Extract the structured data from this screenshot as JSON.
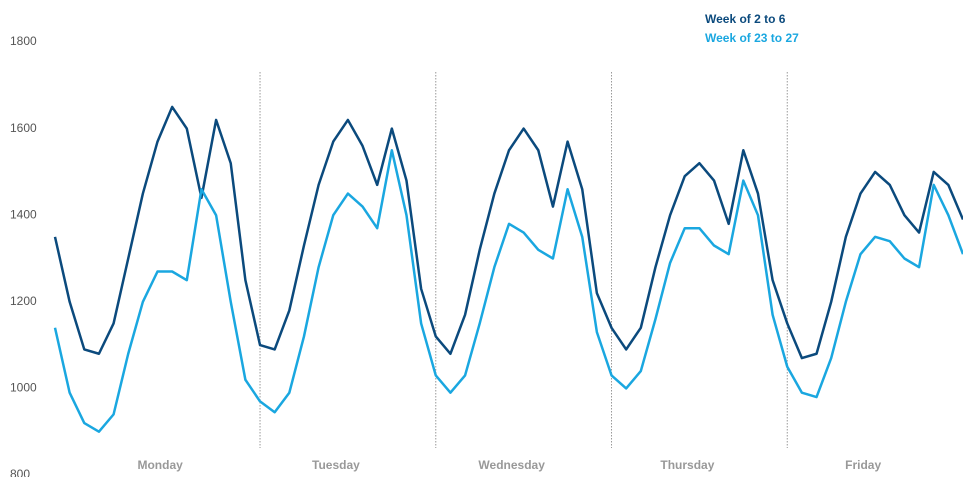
{
  "chart_data": {
    "type": "line",
    "x": [
      -4,
      -2,
      0,
      2,
      4,
      6,
      8,
      10,
      12,
      14,
      16,
      18,
      20,
      22,
      24,
      26,
      28,
      30,
      32,
      34,
      36,
      38,
      40,
      42,
      44,
      46,
      48,
      50,
      52,
      54,
      56,
      58,
      60,
      62,
      64,
      66,
      68,
      70,
      72,
      74,
      76,
      78,
      80,
      82,
      84,
      86,
      88,
      90,
      92,
      94,
      96,
      98,
      100,
      102,
      104,
      106,
      108,
      110,
      112,
      114,
      116,
      118,
      120
    ],
    "series": [
      {
        "name": "Week of 2 to 6",
        "color": "#0b4a7d",
        "values": [
          1350,
          1200,
          1090,
          1080,
          1150,
          1300,
          1450,
          1570,
          1650,
          1600,
          1440,
          1620,
          1520,
          1250,
          1100,
          1090,
          1180,
          1330,
          1470,
          1570,
          1620,
          1560,
          1470,
          1600,
          1480,
          1230,
          1120,
          1080,
          1170,
          1320,
          1450,
          1550,
          1600,
          1550,
          1420,
          1570,
          1460,
          1220,
          1140,
          1090,
          1140,
          1280,
          1400,
          1490,
          1520,
          1480,
          1380,
          1550,
          1450,
          1250,
          1150,
          1070,
          1080,
          1200,
          1350,
          1450,
          1500,
          1470,
          1400,
          1360,
          1500,
          1470,
          1390
        ]
      },
      {
        "name": "Week of 23 to 27",
        "color": "#1aa7e0",
        "values": [
          1140,
          990,
          920,
          900,
          940,
          1080,
          1200,
          1270,
          1270,
          1250,
          1460,
          1400,
          1200,
          1020,
          970,
          945,
          990,
          1120,
          1280,
          1400,
          1450,
          1420,
          1370,
          1550,
          1400,
          1150,
          1030,
          990,
          1030,
          1150,
          1280,
          1380,
          1360,
          1320,
          1300,
          1460,
          1350,
          1130,
          1030,
          1000,
          1040,
          1160,
          1290,
          1370,
          1370,
          1330,
          1310,
          1480,
          1400,
          1170,
          1050,
          990,
          980,
          1070,
          1200,
          1310,
          1350,
          1340,
          1300,
          1280,
          1470,
          1400,
          1310
        ]
      }
    ],
    "xlim": [
      -4,
      120
    ],
    "xticks": [
      {
        "value": 12,
        "label": "Monday"
      },
      {
        "value": 36,
        "label": "Tuesday"
      },
      {
        "value": 60,
        "label": "Wednesday"
      },
      {
        "value": 84,
        "label": "Thursday"
      },
      {
        "value": 108,
        "label": "Friday"
      }
    ],
    "xgrid": [
      24,
      48,
      72,
      96
    ],
    "ylim": [
      800,
      1800
    ],
    "yticks": [
      800,
      1000,
      1200,
      1400,
      1600,
      1800
    ]
  }
}
